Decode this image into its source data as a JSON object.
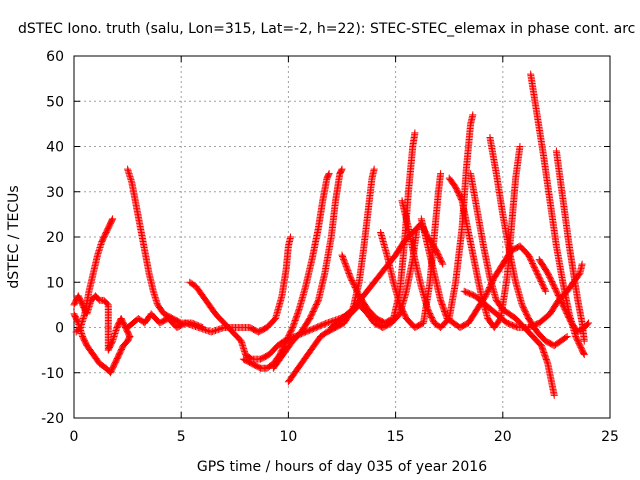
{
  "chart_data": {
    "type": "scatter",
    "title": "dSTEC Iono. truth (salu, Lon=315, Lat=-2, h=22): STEC-STEC_elemax in phase cont. arc",
    "xlabel": "GPS time / hours of day 035 of year 2016",
    "ylabel": "dSTEC  / TECUs",
    "xlim": [
      0,
      25
    ],
    "ylim": [
      -20,
      60
    ],
    "x_ticks": [
      0,
      5,
      10,
      15,
      20,
      25
    ],
    "y_ticks": [
      -20,
      -10,
      0,
      10,
      20,
      30,
      40,
      50,
      60
    ],
    "grid": true,
    "marker": "+",
    "colors": {
      "series": "#ff0000",
      "grid": "#a0a0a0",
      "frame": "#000000"
    },
    "series": [
      {
        "points": [
          [
            0.0,
            3
          ],
          [
            0.2,
            1
          ],
          [
            0.4,
            -2
          ],
          [
            0.6,
            -4
          ],
          [
            0.9,
            -6
          ],
          [
            1.2,
            -8
          ],
          [
            1.5,
            -9
          ],
          [
            1.7,
            -10
          ],
          [
            1.9,
            -8
          ],
          [
            2.1,
            -6
          ],
          [
            2.3,
            -4
          ],
          [
            2.5,
            -3
          ],
          [
            2.6,
            -2
          ]
        ]
      },
      {
        "points": [
          [
            0.1,
            -1
          ],
          [
            0.3,
            0
          ],
          [
            0.5,
            3
          ],
          [
            0.7,
            8
          ],
          [
            0.9,
            12
          ],
          [
            1.1,
            16
          ],
          [
            1.3,
            19
          ],
          [
            1.5,
            21
          ],
          [
            1.7,
            23
          ],
          [
            1.8,
            24
          ]
        ]
      },
      {
        "points": [
          [
            0.0,
            5
          ],
          [
            0.2,
            7
          ],
          [
            0.4,
            5
          ],
          [
            0.6,
            3
          ],
          [
            0.8,
            6
          ],
          [
            1.0,
            7
          ],
          [
            1.2,
            6
          ],
          [
            1.4,
            6
          ],
          [
            1.6,
            5
          ],
          [
            1.6,
            -5
          ],
          [
            1.8,
            -3
          ],
          [
            2.0,
            0
          ],
          [
            2.2,
            2
          ],
          [
            2.4,
            0
          ],
          [
            2.6,
            -2
          ]
        ]
      },
      {
        "points": [
          [
            2.5,
            35
          ],
          [
            2.7,
            32
          ],
          [
            2.9,
            27
          ],
          [
            3.1,
            22
          ],
          [
            3.3,
            17
          ],
          [
            3.5,
            12
          ],
          [
            3.7,
            8
          ],
          [
            3.9,
            5
          ],
          [
            4.2,
            3
          ],
          [
            4.6,
            2
          ],
          [
            5.0,
            1
          ],
          [
            5.5,
            1
          ],
          [
            6.0,
            0
          ]
        ]
      },
      {
        "points": [
          [
            2.5,
            0
          ],
          [
            3.0,
            2
          ],
          [
            3.3,
            1
          ],
          [
            3.6,
            3
          ],
          [
            4.0,
            1
          ],
          [
            4.4,
            2
          ],
          [
            4.8,
            0
          ],
          [
            5.2,
            1
          ],
          [
            5.8,
            0
          ],
          [
            6.4,
            -1
          ],
          [
            7.0,
            0
          ],
          [
            7.6,
            0
          ],
          [
            8.2,
            0
          ],
          [
            8.6,
            -1
          ],
          [
            9.0,
            0
          ],
          [
            9.4,
            2
          ],
          [
            9.7,
            7
          ],
          [
            9.9,
            13
          ],
          [
            10.0,
            18
          ],
          [
            10.1,
            20
          ]
        ]
      },
      {
        "points": [
          [
            5.4,
            10
          ],
          [
            5.7,
            9
          ],
          [
            6.0,
            7
          ],
          [
            6.3,
            5
          ],
          [
            6.6,
            3
          ],
          [
            7.0,
            1
          ],
          [
            7.4,
            -1
          ],
          [
            7.8,
            -3
          ],
          [
            8.0,
            -6
          ],
          [
            8.3,
            -7
          ],
          [
            8.7,
            -7
          ],
          [
            9.1,
            -6
          ],
          [
            9.5,
            -4
          ],
          [
            9.8,
            -3
          ]
        ]
      },
      {
        "points": [
          [
            7.9,
            -7
          ],
          [
            8.3,
            -8
          ],
          [
            8.7,
            -9
          ],
          [
            9.0,
            -9
          ],
          [
            9.3,
            -8
          ],
          [
            9.6,
            -6
          ],
          [
            9.9,
            -3
          ],
          [
            10.2,
            0
          ],
          [
            10.5,
            4
          ],
          [
            10.8,
            9
          ],
          [
            11.1,
            15
          ],
          [
            11.4,
            22
          ],
          [
            11.6,
            28
          ],
          [
            11.8,
            33
          ],
          [
            11.9,
            34
          ]
        ]
      },
      {
        "points": [
          [
            9.3,
            -9
          ],
          [
            9.6,
            -7
          ],
          [
            9.9,
            -5
          ],
          [
            10.2,
            -3
          ],
          [
            10.6,
            -1
          ],
          [
            11.0,
            2
          ],
          [
            11.4,
            6
          ],
          [
            11.7,
            12
          ],
          [
            12.0,
            20
          ],
          [
            12.2,
            28
          ],
          [
            12.4,
            34
          ],
          [
            12.5,
            35
          ]
        ]
      },
      {
        "points": [
          [
            10.0,
            -12
          ],
          [
            10.3,
            -10
          ],
          [
            10.6,
            -8
          ],
          [
            10.9,
            -6
          ],
          [
            11.2,
            -4
          ],
          [
            11.5,
            -2
          ],
          [
            11.8,
            -1
          ],
          [
            12.2,
            0
          ],
          [
            12.6,
            1
          ],
          [
            13.0,
            4
          ],
          [
            13.3,
            10
          ],
          [
            13.5,
            17
          ],
          [
            13.7,
            25
          ],
          [
            13.9,
            33
          ],
          [
            14.0,
            35
          ]
        ]
      },
      {
        "points": [
          [
            9.8,
            -3
          ],
          [
            10.3,
            -2
          ],
          [
            10.8,
            -1
          ],
          [
            11.3,
            0
          ],
          [
            11.8,
            1
          ],
          [
            12.4,
            2
          ],
          [
            12.9,
            3
          ],
          [
            13.3,
            5
          ],
          [
            13.7,
            3
          ],
          [
            14.0,
            1
          ],
          [
            14.4,
            0
          ],
          [
            14.8,
            1
          ],
          [
            15.2,
            3
          ],
          [
            15.5,
            8
          ],
          [
            15.8,
            15
          ],
          [
            16.0,
            22
          ]
        ]
      },
      {
        "points": [
          [
            12.0,
            0
          ],
          [
            12.5,
            2
          ],
          [
            13.0,
            4
          ],
          [
            13.5,
            7
          ],
          [
            14.0,
            10
          ],
          [
            14.5,
            13
          ],
          [
            15.0,
            16
          ],
          [
            15.4,
            19
          ],
          [
            15.8,
            21
          ],
          [
            16.2,
            23
          ],
          [
            16.5,
            20
          ],
          [
            16.9,
            17
          ],
          [
            17.2,
            14
          ]
        ]
      },
      {
        "points": [
          [
            12.5,
            16
          ],
          [
            12.9,
            11
          ],
          [
            13.3,
            7
          ],
          [
            13.7,
            4
          ],
          [
            14.1,
            2
          ],
          [
            14.5,
            1
          ],
          [
            14.9,
            2
          ],
          [
            15.2,
            8
          ],
          [
            15.4,
            18
          ],
          [
            15.6,
            30
          ],
          [
            15.8,
            40
          ],
          [
            15.9,
            43
          ]
        ]
      },
      {
        "points": [
          [
            14.3,
            21
          ],
          [
            14.6,
            16
          ],
          [
            14.9,
            10
          ],
          [
            15.2,
            5
          ],
          [
            15.5,
            2
          ],
          [
            15.9,
            0
          ],
          [
            16.3,
            1
          ],
          [
            16.6,
            10
          ],
          [
            16.8,
            20
          ],
          [
            17.0,
            30
          ],
          [
            17.1,
            34
          ]
        ]
      },
      {
        "points": [
          [
            15.3,
            28
          ],
          [
            15.6,
            22
          ],
          [
            15.9,
            15
          ],
          [
            16.2,
            9
          ],
          [
            16.5,
            4
          ],
          [
            16.8,
            1
          ],
          [
            17.1,
            0
          ],
          [
            17.5,
            2
          ],
          [
            17.8,
            10
          ],
          [
            18.1,
            22
          ],
          [
            18.3,
            35
          ],
          [
            18.5,
            45
          ],
          [
            18.6,
            47
          ]
        ]
      },
      {
        "points": [
          [
            17.5,
            33
          ],
          [
            17.8,
            31
          ],
          [
            18.1,
            28
          ],
          [
            18.4,
            21
          ],
          [
            18.7,
            14
          ],
          [
            19.0,
            7
          ],
          [
            19.3,
            2
          ],
          [
            19.6,
            0
          ],
          [
            19.9,
            2
          ],
          [
            20.2,
            11
          ],
          [
            20.4,
            22
          ],
          [
            20.6,
            33
          ],
          [
            20.8,
            40
          ]
        ]
      },
      {
        "points": [
          [
            16.2,
            24
          ],
          [
            16.5,
            18
          ],
          [
            16.8,
            12
          ],
          [
            17.1,
            6
          ],
          [
            17.4,
            2
          ],
          [
            17.7,
            1
          ],
          [
            18.0,
            0
          ],
          [
            18.4,
            1
          ],
          [
            18.8,
            4
          ],
          [
            19.2,
            7
          ],
          [
            19.6,
            11
          ],
          [
            20.0,
            14
          ],
          [
            20.4,
            17
          ],
          [
            20.8,
            18
          ],
          [
            21.2,
            16
          ],
          [
            21.6,
            12
          ],
          [
            22.0,
            8
          ]
        ]
      },
      {
        "points": [
          [
            18.5,
            34
          ],
          [
            18.8,
            26
          ],
          [
            19.1,
            18
          ],
          [
            19.4,
            11
          ],
          [
            19.7,
            6
          ],
          [
            20.0,
            4
          ],
          [
            20.3,
            3
          ],
          [
            20.6,
            2
          ],
          [
            21.0,
            0
          ],
          [
            21.4,
            -2
          ],
          [
            21.8,
            -4
          ],
          [
            22.1,
            -8
          ],
          [
            22.4,
            -15
          ]
        ]
      },
      {
        "points": [
          [
            19.4,
            42
          ],
          [
            19.7,
            34
          ],
          [
            20.0,
            25
          ],
          [
            20.3,
            17
          ],
          [
            20.6,
            10
          ],
          [
            20.9,
            5
          ],
          [
            21.2,
            2
          ],
          [
            21.6,
            -1
          ],
          [
            22.0,
            -3
          ],
          [
            22.4,
            -4
          ],
          [
            22.7,
            -3
          ],
          [
            23.0,
            -2
          ]
        ]
      },
      {
        "points": [
          [
            21.3,
            56
          ],
          [
            21.6,
            47
          ],
          [
            21.9,
            38
          ],
          [
            22.2,
            28
          ],
          [
            22.5,
            18
          ],
          [
            22.8,
            10
          ],
          [
            23.1,
            3
          ],
          [
            23.4,
            -2
          ],
          [
            23.7,
            -5
          ],
          [
            23.8,
            -6
          ]
        ]
      },
      {
        "points": [
          [
            22.5,
            39
          ],
          [
            22.7,
            32
          ],
          [
            22.9,
            25
          ],
          [
            23.1,
            18
          ],
          [
            23.3,
            12
          ],
          [
            23.5,
            6
          ],
          [
            23.7,
            1
          ],
          [
            23.8,
            -3
          ]
        ]
      },
      {
        "points": [
          [
            18.2,
            8
          ],
          [
            18.7,
            7
          ],
          [
            19.2,
            5
          ],
          [
            19.7,
            3
          ],
          [
            20.2,
            1
          ],
          [
            20.7,
            0
          ],
          [
            21.2,
            0
          ],
          [
            21.7,
            1
          ],
          [
            22.2,
            3
          ],
          [
            22.6,
            6
          ],
          [
            23.0,
            8
          ],
          [
            23.3,
            10
          ],
          [
            23.6,
            12
          ],
          [
            23.7,
            14
          ]
        ]
      },
      {
        "points": [
          [
            21.7,
            15
          ],
          [
            22.1,
            12
          ],
          [
            22.5,
            8
          ],
          [
            22.9,
            4
          ],
          [
            23.2,
            1
          ],
          [
            23.5,
            -1
          ],
          [
            23.8,
            0
          ],
          [
            24.0,
            1
          ]
        ]
      }
    ]
  }
}
